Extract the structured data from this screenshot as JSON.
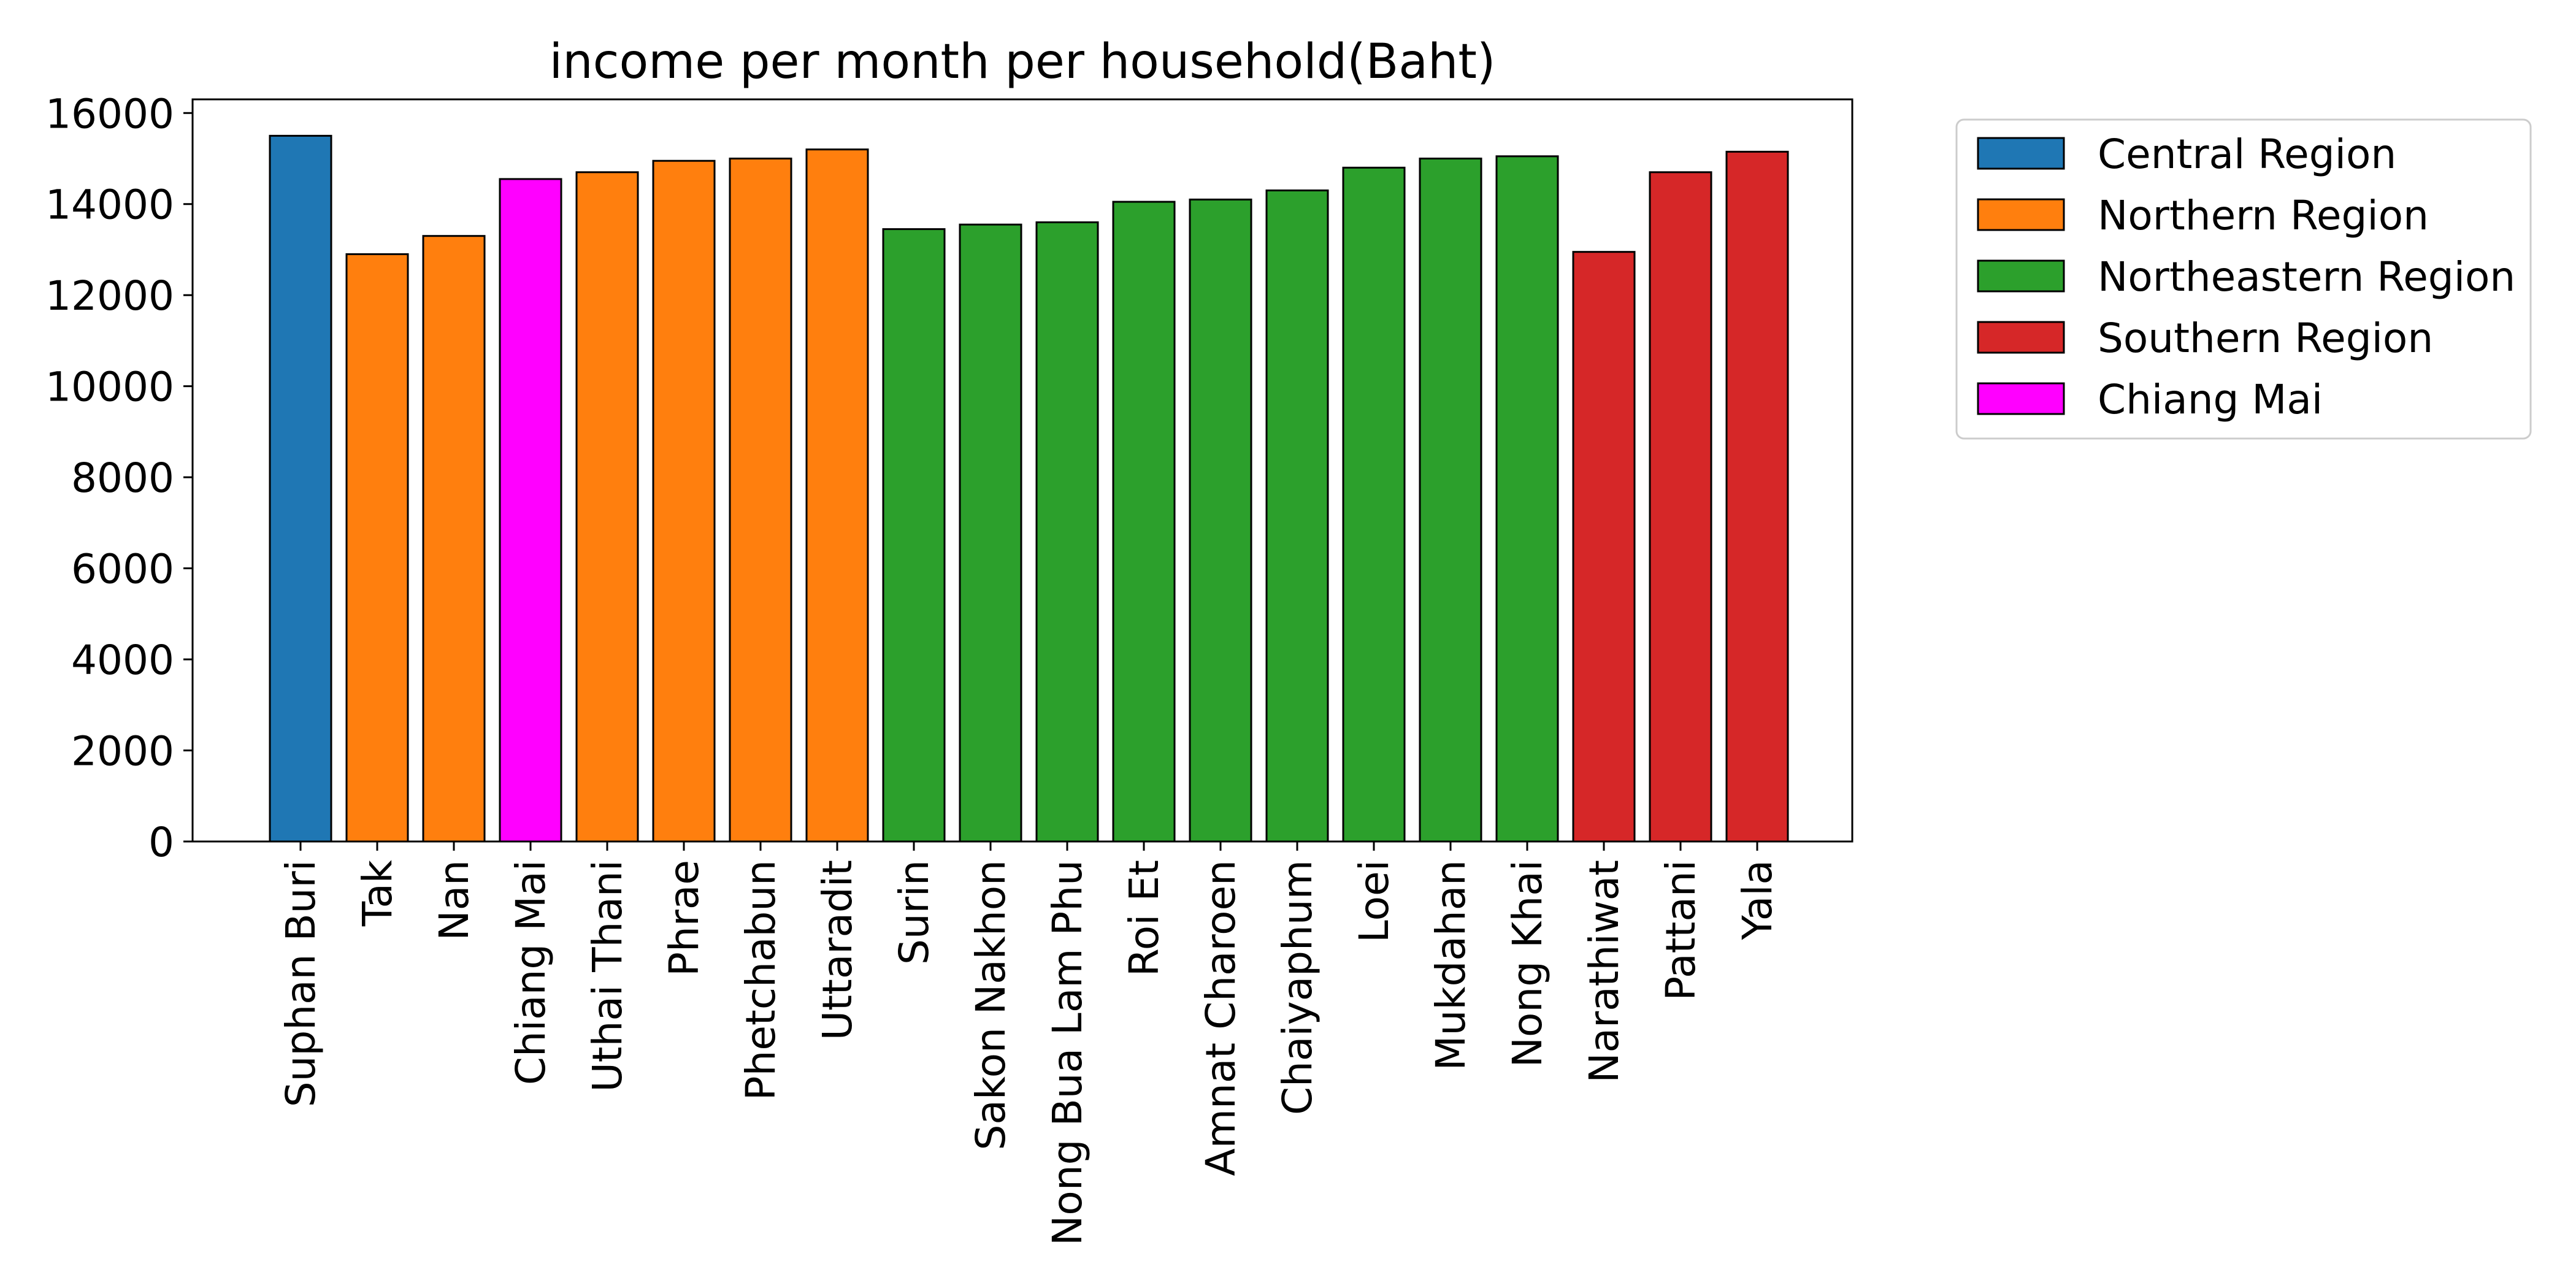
{
  "chart_data": {
    "type": "bar",
    "title": "income per month per household(Baht)",
    "xlabel": "",
    "ylabel": "",
    "ylim": [
      0,
      16300
    ],
    "yticks": [
      0,
      2000,
      4000,
      6000,
      8000,
      10000,
      12000,
      14000,
      16000
    ],
    "grid": false,
    "legend_position": "upper right outside plot",
    "categories": [
      "Suphan Buri",
      "Tak",
      "Nan",
      "Chiang Mai",
      "Uthai Thani",
      "Phrae",
      "Phetchabun",
      "Uttaradit",
      "Surin",
      "Sakon Nakhon",
      "Nong Bua Lam Phu",
      "Roi Et",
      "Amnat Charoen",
      "Chaiyaphum",
      "Loei",
      "Mukdahan",
      "Nong Khai",
      "Narathiwat",
      "Pattani",
      "Yala"
    ],
    "values": [
      15500,
      12900,
      13300,
      14550,
      14700,
      14950,
      15000,
      15200,
      13450,
      13550,
      13600,
      14050,
      14100,
      14300,
      14800,
      15000,
      15050,
      12950,
      14700,
      15150
    ],
    "groups": [
      "Central Region",
      "Northern Region",
      "Northern Region",
      "Chiang Mai",
      "Northern Region",
      "Northern Region",
      "Northern Region",
      "Northern Region",
      "Northeastern Region",
      "Northeastern Region",
      "Northeastern Region",
      "Northeastern Region",
      "Northeastern Region",
      "Northeastern Region",
      "Northeastern Region",
      "Northeastern Region",
      "Northeastern Region",
      "Southern Region",
      "Southern Region",
      "Southern Region"
    ],
    "legend": [
      {
        "name": "Central Region",
        "color": "#1f77b4"
      },
      {
        "name": "Northern Region",
        "color": "#ff7f0e"
      },
      {
        "name": "Northeastern Region",
        "color": "#2ca02c"
      },
      {
        "name": "Southern Region",
        "color": "#d62728"
      },
      {
        "name": "Chiang Mai",
        "color": "#ff00ff"
      }
    ]
  }
}
